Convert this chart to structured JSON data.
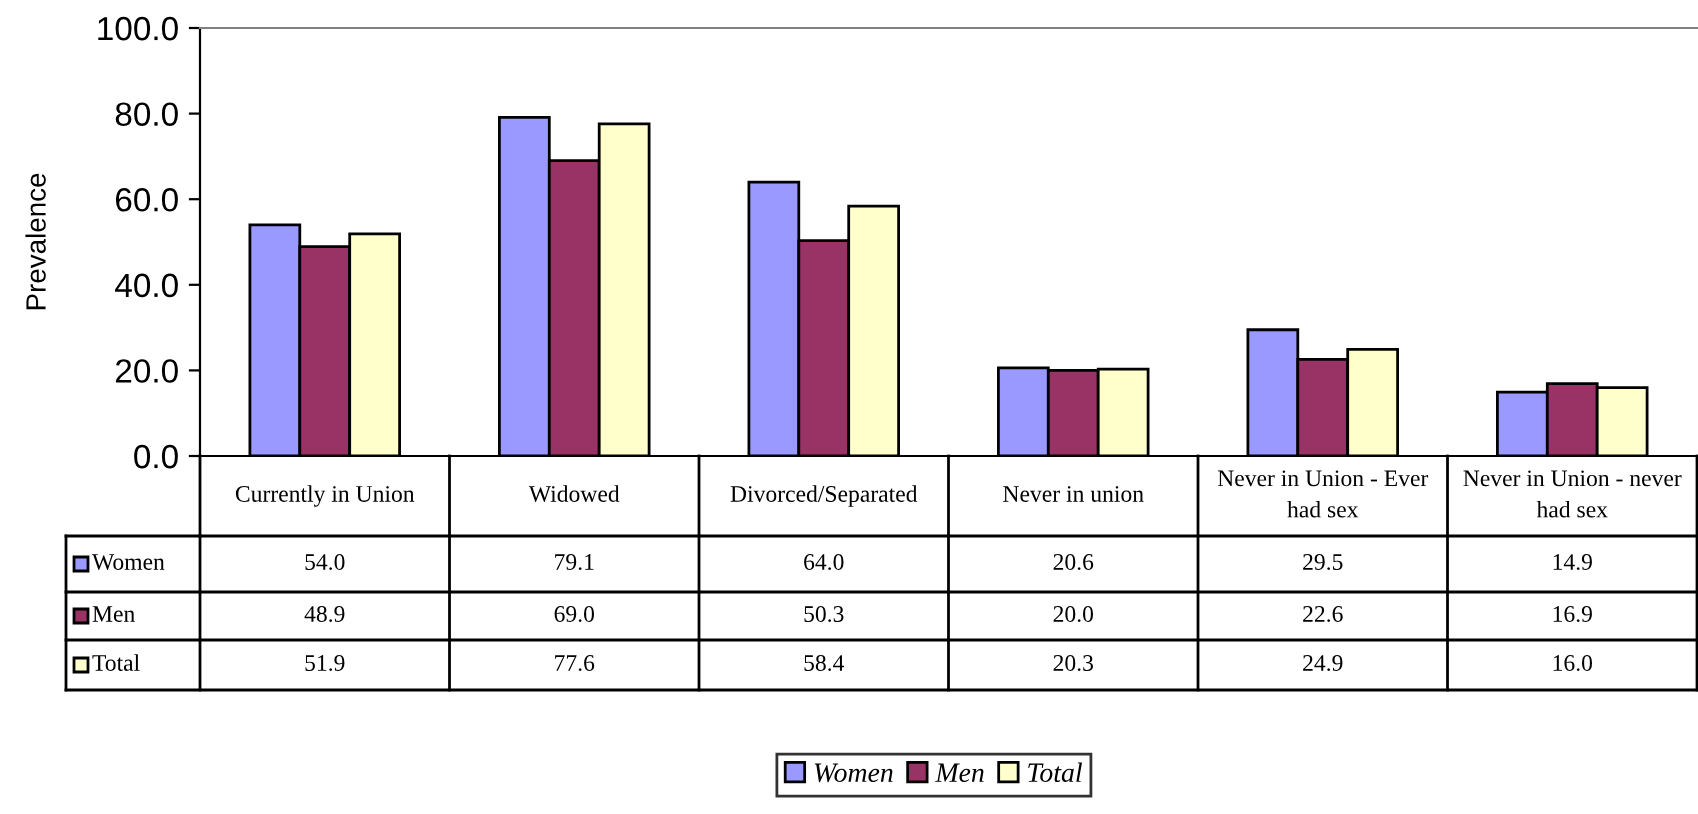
{
  "chart_data": {
    "type": "bar",
    "ylabel": "Prevalence",
    "categories": [
      "Currently in Union",
      "Widowed",
      "Divorced/Separated",
      "Never in union",
      "Never in Union - Ever had sex",
      "Never in Union - never had sex"
    ],
    "series": [
      {
        "name": "Women",
        "color": "#9999ff",
        "values": [
          54.0,
          79.1,
          64.0,
          20.6,
          29.5,
          14.9
        ],
        "value_labels": [
          "54.0",
          "79.1",
          "64.0",
          "20.6",
          "29.5",
          "14.9"
        ]
      },
      {
        "name": "Men",
        "color": "#993366",
        "values": [
          48.9,
          69.0,
          50.3,
          20.0,
          22.6,
          16.9
        ],
        "value_labels": [
          "48.9",
          "69.0",
          "50.3",
          "20.0",
          "22.6",
          "16.9"
        ]
      },
      {
        "name": "Total",
        "color": "#ffffcc",
        "values": [
          51.9,
          77.6,
          58.4,
          20.3,
          24.9,
          16.0
        ],
        "value_labels": [
          "51.9",
          "77.6",
          "58.4",
          "20.3",
          "24.9",
          "16.0"
        ]
      }
    ],
    "ylim": [
      0,
      100
    ],
    "yticks": [
      {
        "value": 0,
        "label": "0.0"
      },
      {
        "value": 20,
        "label": "20.0"
      },
      {
        "value": 40,
        "label": "40.0"
      },
      {
        "value": 60,
        "label": "60.0"
      },
      {
        "value": 80,
        "label": "80.0"
      },
      {
        "value": 100,
        "label": "100.0"
      }
    ],
    "grid": false,
    "legend": "bottom"
  }
}
